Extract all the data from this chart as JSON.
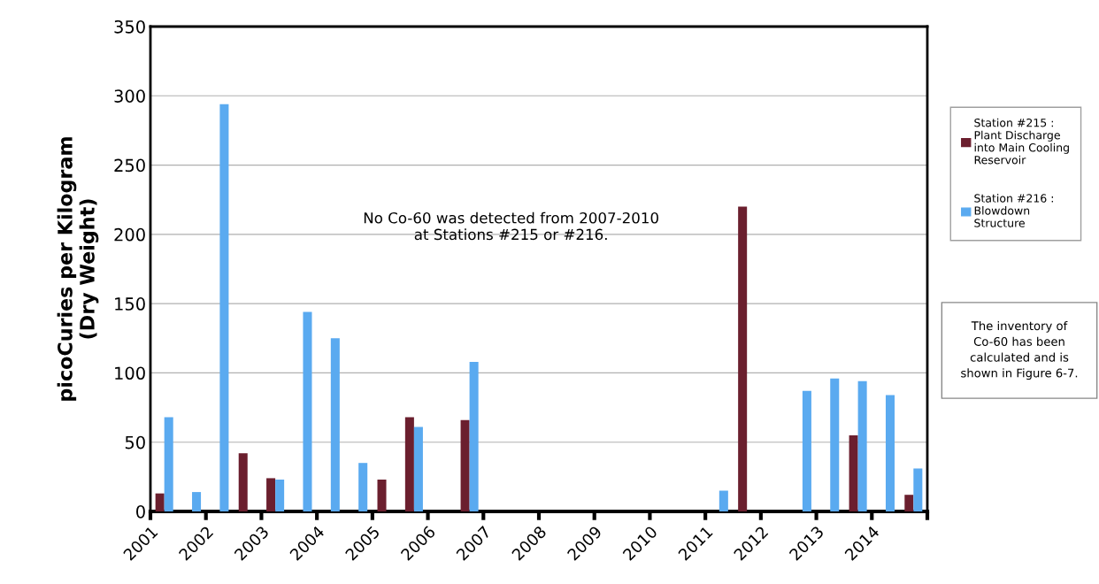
{
  "chart_data": {
    "type": "bar",
    "ylabel": "picoCuries per Kilogram\n(Dry Weight)",
    "series": [
      {
        "name": "Station #215 :  Plant Discharge into Main Cooling Reservoir",
        "color": "#6b1f2e",
        "x": [
          2001.25,
          2002.75,
          2003.25,
          2005.25,
          2005.75,
          2006.75,
          2011.75,
          2013.75,
          2014.75
        ],
        "values": [
          13,
          42,
          24,
          23,
          68,
          66,
          220,
          55,
          12
        ]
      },
      {
        "name": "Station #216 : Blowdown Structure",
        "color": "#5aaaf0",
        "x": [
          2001.25,
          2001.75,
          2002.25,
          2003.25,
          2003.75,
          2004.25,
          2004.75,
          2005.75,
          2006.75,
          2011.25,
          2012.75,
          2013.25,
          2013.75,
          2014.25,
          2014.75
        ],
        "values": [
          68,
          14,
          294,
          23,
          144,
          125,
          35,
          61,
          108,
          15,
          87,
          96,
          94,
          84,
          31
        ]
      }
    ],
    "xlim": [
      2001,
      2015
    ],
    "xticks": [
      2001,
      2002,
      2003,
      2004,
      2005,
      2006,
      2007,
      2008,
      2009,
      2010,
      2011,
      2012,
      2013,
      2014,
      {
        "value": 2015,
        "label": null
      }
    ],
    "ylim": [
      0,
      350
    ],
    "yticks": [
      0,
      50,
      100,
      150,
      200,
      250,
      300,
      350
    ],
    "grid": "y",
    "legend": "right",
    "annotations": [
      "No Co-60 was detected from 2007-2010\nat Stations #215 or #216.",
      "The inventory of\nCo-60 has been\ncalculated and is\nshown in Figure 6-7."
    ]
  }
}
